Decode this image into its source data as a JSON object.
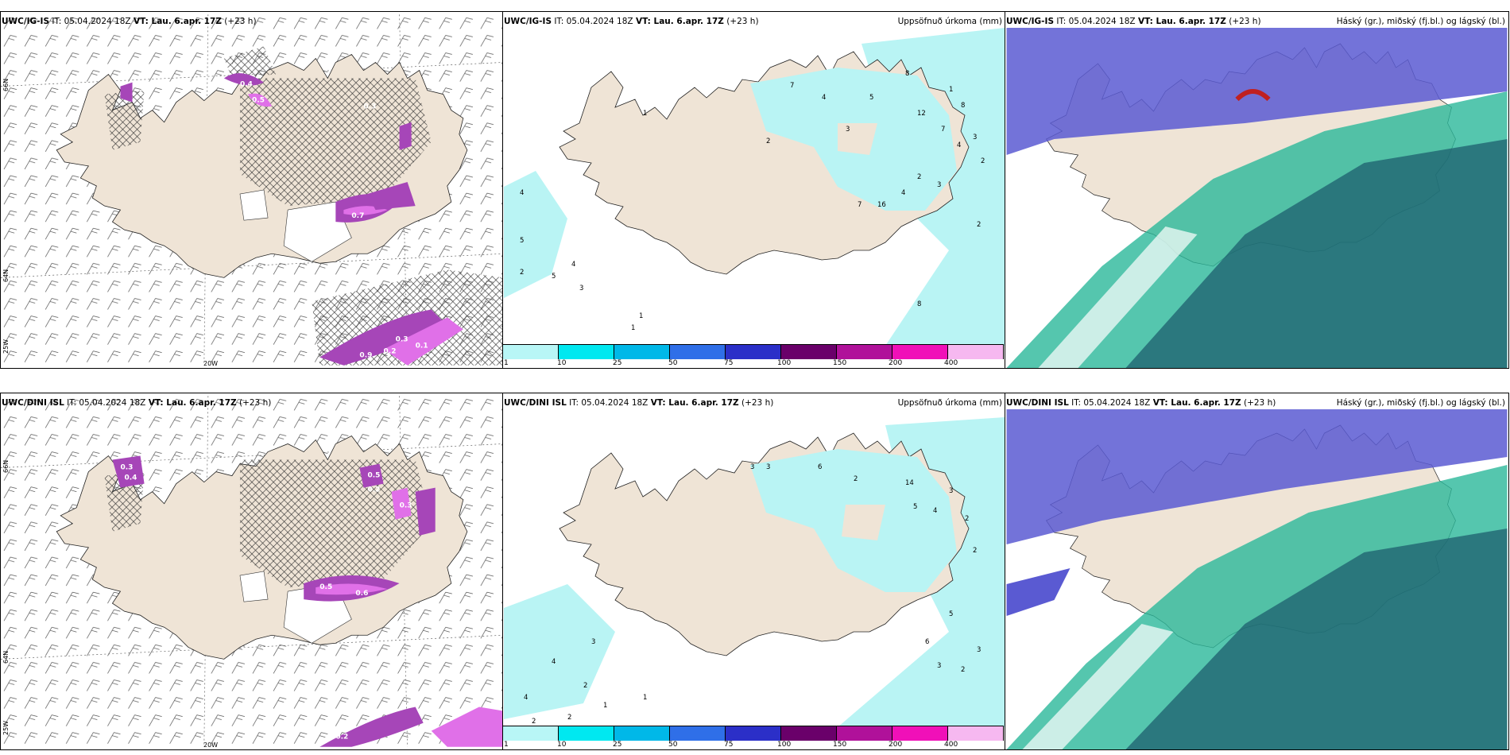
{
  "panels": {
    "top_left": {
      "model": "UWC/IG-IS",
      "it": "IT: 05.04.2024 18Z",
      "vt": "VT: Lau. 6.apr. 17Z",
      "lead": "(+23 h)"
    },
    "top_mid": {
      "model": "UWC/IG-IS",
      "it": "IT: 05.04.2024 18Z",
      "vt": "VT: Lau. 6.apr. 17Z",
      "lead": "(+23 h)",
      "product": "Uppsöfnuð úrkoma (mm)"
    },
    "top_right": {
      "model": "UWC/IG-IS",
      "it": "IT: 05.04.2024 18Z",
      "vt": "VT: Lau. 6.apr. 17Z",
      "lead": "(+23 h)",
      "product": "Háský (gr.), miðský (fj.bl.) og lágský (bl.)"
    },
    "bot_left": {
      "model": "UWC/DINI ISL",
      "it": "IT: 05.04.2024 18Z",
      "vt": "VT: Lau. 6.apr. 17Z",
      "lead": "(+23 h)"
    },
    "bot_mid": {
      "model": "UWC/DINI ISL",
      "it": "IT: 05.04.2024 18Z",
      "vt": "VT: Lau. 6.apr. 17Z",
      "lead": "(+23 h)",
      "product": "Uppsöfnuð úrkoma (mm)"
    },
    "bot_right": {
      "model": "UWC/DINI ISL",
      "it": "IT: 05.04.2024 18Z",
      "vt": "VT: Lau. 6.apr. 17Z",
      "lead": "(+23 h)",
      "product": "Háský (gr.), miðský (fj.bl.) og lágský (bl.)"
    }
  },
  "grid_labels": {
    "lat_66": "66N",
    "lat_64": "64N",
    "lon_25": "25W",
    "lon_20": "20W"
  },
  "colorbar": {
    "labels": [
      "1",
      "10",
      "25",
      "50",
      "75",
      "100",
      "150",
      "200",
      "400"
    ],
    "colors": [
      "#b8f6f6",
      "#00e8f0",
      "#00b8e8",
      "#2f6fe8",
      "#2b2fc8",
      "#6a006a",
      "#b0119a",
      "#f010b8",
      "#f6b8f0"
    ]
  },
  "colors": {
    "land": "#efe4d6",
    "precip_light": "#b9f4f4",
    "snow_purple": "#a646b8",
    "snow_pink": "#e070e8",
    "cloud_high": "#5a5ad2",
    "cloud_mid": "#2bb89a",
    "cloud_low": "#1e5e6e"
  },
  "precip_values_top": [
    "1",
    "4",
    "5",
    "2",
    "5",
    "4",
    "3",
    "1",
    "1",
    "2",
    "8",
    "7",
    "4",
    "3",
    "5",
    "1",
    "8",
    "3",
    "2",
    "4",
    "12",
    "7",
    "4",
    "2",
    "16",
    "7",
    "3",
    "2",
    "8"
  ],
  "precip_values_bot": [
    "3",
    "4",
    "2",
    "4",
    "2",
    "2",
    "1",
    "1",
    "3",
    "3",
    "6",
    "2",
    "14",
    "5",
    "4",
    "3",
    "2",
    "2",
    "5",
    "6",
    "3",
    "3",
    "2"
  ],
  "snow_values_top": [
    "0.4",
    "0.5",
    "0.3",
    "0.7",
    "0.8",
    "0.2",
    "0.3",
    "0.9",
    "0.1"
  ],
  "snow_values_bot": [
    "0.3",
    "0.4",
    "0.5",
    "0.2",
    "0.6",
    "0.5",
    "0.3",
    "0.2"
  ]
}
